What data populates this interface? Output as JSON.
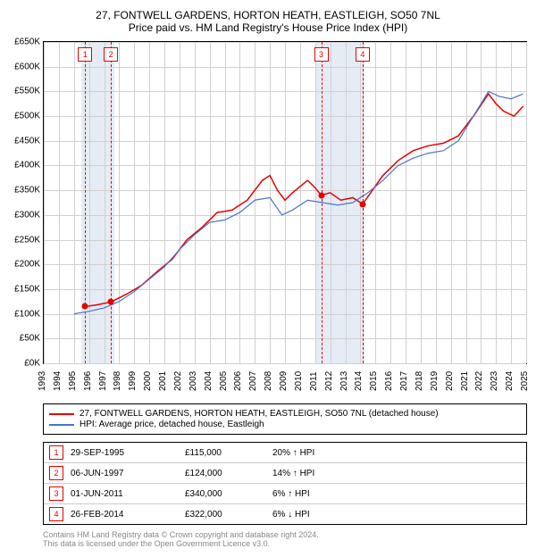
{
  "title": {
    "line1": "27, FONTWELL GARDENS, HORTON HEATH, EASTLEIGH, SO50 7NL",
    "line2": "Price paid vs. HM Land Registry's House Price Index (HPI)"
  },
  "chart": {
    "type": "line",
    "ymin": 0,
    "ymax": 650000,
    "ystep": 50000,
    "xmin": 1993,
    "xmax": 2025,
    "xstep": 1,
    "grid_color": "#d0d0d0",
    "background_color": "#ffffff",
    "shade_color": "#e6ecf5",
    "shade_ranges": [
      [
        1995.5,
        1997.7
      ],
      [
        2011.0,
        2014.3
      ]
    ],
    "dash_years": [
      1995.75,
      1997.45,
      2011.4,
      2014.15
    ],
    "series": [
      {
        "name": "property",
        "color": "#e60000",
        "width": 1.5,
        "label": "27, FONTWELL GARDENS, HORTON HEATH, EASTLEIGH, SO50 7NL (detached house)",
        "points": [
          [
            1995.75,
            115000
          ],
          [
            1996.5,
            118000
          ],
          [
            1997.45,
            124000
          ],
          [
            1998.5,
            140000
          ],
          [
            1999.5,
            158000
          ],
          [
            2000.5,
            185000
          ],
          [
            2001.5,
            210000
          ],
          [
            2002.5,
            250000
          ],
          [
            2003.5,
            275000
          ],
          [
            2004.5,
            305000
          ],
          [
            2005.5,
            310000
          ],
          [
            2006.5,
            330000
          ],
          [
            2007.5,
            370000
          ],
          [
            2008.0,
            380000
          ],
          [
            2008.5,
            350000
          ],
          [
            2009.0,
            330000
          ],
          [
            2009.5,
            345000
          ],
          [
            2010.5,
            370000
          ],
          [
            2011.0,
            355000
          ],
          [
            2011.4,
            340000
          ],
          [
            2012.0,
            345000
          ],
          [
            2012.7,
            330000
          ],
          [
            2013.5,
            335000
          ],
          [
            2014.15,
            322000
          ],
          [
            2014.8,
            350000
          ],
          [
            2015.5,
            380000
          ],
          [
            2016.5,
            410000
          ],
          [
            2017.5,
            430000
          ],
          [
            2018.5,
            440000
          ],
          [
            2019.5,
            445000
          ],
          [
            2020.5,
            460000
          ],
          [
            2021.5,
            500000
          ],
          [
            2022.5,
            545000
          ],
          [
            2023.0,
            525000
          ],
          [
            2023.5,
            510000
          ],
          [
            2024.2,
            500000
          ],
          [
            2024.8,
            520000
          ]
        ]
      },
      {
        "name": "hpi",
        "color": "#4a74c9",
        "width": 1.2,
        "label": "HPI: Average price, detached house, Eastleigh",
        "points": [
          [
            1995.0,
            100000
          ],
          [
            1996.0,
            105000
          ],
          [
            1997.0,
            112000
          ],
          [
            1998.0,
            125000
          ],
          [
            1999.0,
            145000
          ],
          [
            2000.0,
            170000
          ],
          [
            2001.0,
            195000
          ],
          [
            2002.0,
            230000
          ],
          [
            2003.0,
            260000
          ],
          [
            2004.0,
            285000
          ],
          [
            2005.0,
            290000
          ],
          [
            2006.0,
            305000
          ],
          [
            2007.0,
            330000
          ],
          [
            2008.0,
            335000
          ],
          [
            2008.8,
            300000
          ],
          [
            2009.5,
            310000
          ],
          [
            2010.5,
            330000
          ],
          [
            2011.5,
            325000
          ],
          [
            2012.5,
            320000
          ],
          [
            2013.5,
            325000
          ],
          [
            2014.5,
            345000
          ],
          [
            2015.5,
            370000
          ],
          [
            2016.5,
            400000
          ],
          [
            2017.5,
            415000
          ],
          [
            2018.5,
            425000
          ],
          [
            2019.5,
            430000
          ],
          [
            2020.5,
            450000
          ],
          [
            2021.5,
            500000
          ],
          [
            2022.5,
            550000
          ],
          [
            2023.2,
            540000
          ],
          [
            2024.0,
            535000
          ],
          [
            2024.8,
            545000
          ]
        ]
      }
    ],
    "sale_dots": [
      [
        1995.75,
        115000
      ],
      [
        1997.45,
        124000
      ],
      [
        2011.4,
        340000
      ],
      [
        2014.15,
        322000
      ]
    ],
    "marker_boxes": [
      {
        "n": "1",
        "year": 1995.75
      },
      {
        "n": "2",
        "year": 1997.45
      },
      {
        "n": "3",
        "year": 2011.4
      },
      {
        "n": "4",
        "year": 2014.15
      }
    ]
  },
  "legend": {
    "items": [
      {
        "color": "#e60000",
        "label": "27, FONTWELL GARDENS, HORTON HEATH, EASTLEIGH, SO50 7NL (detached house)"
      },
      {
        "color": "#4a74c9",
        "label": "HPI: Average price, detached house, Eastleigh"
      }
    ]
  },
  "details": [
    {
      "n": "1",
      "date": "29-SEP-1995",
      "price": "£115,000",
      "pct": "20% ↑ HPI"
    },
    {
      "n": "2",
      "date": "06-JUN-1997",
      "price": "£124,000",
      "pct": "14% ↑ HPI"
    },
    {
      "n": "3",
      "date": "01-JUN-2011",
      "price": "£340,000",
      "pct": "6% ↑ HPI"
    },
    {
      "n": "4",
      "date": "26-FEB-2014",
      "price": "£322,000",
      "pct": "6% ↓ HPI"
    }
  ],
  "footer": {
    "line1": "Contains HM Land Registry data © Crown copyright and database right 2024.",
    "line2": "This data is licensed under the Open Government Licence v3.0."
  },
  "ylabel_fmt_prefix": "£",
  "ylabel_fmt_suffix": "K"
}
